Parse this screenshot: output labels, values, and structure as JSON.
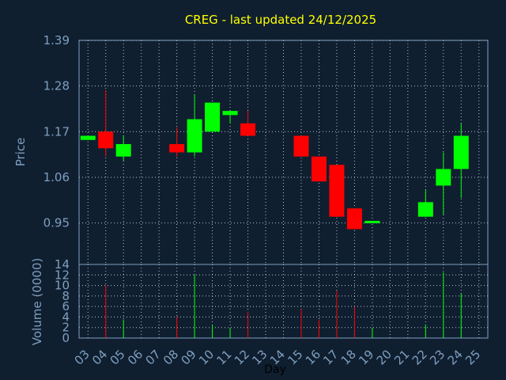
{
  "chart_data": {
    "type": "candlestick",
    "title": "CREG - last updated 24/12/2025",
    "xlabel": "Day",
    "price_panel": {
      "ylabel": "Price",
      "ylim": [
        0.85,
        1.39
      ],
      "yticks": [
        "0.95",
        "1.06",
        "1.17",
        "1.28",
        "1.39"
      ]
    },
    "volume_panel": {
      "ylabel": "Volume (0000)",
      "ylim": [
        0,
        14
      ],
      "yticks": [
        "0",
        "2",
        "4",
        "6",
        "8",
        "10",
        "12",
        "14"
      ]
    },
    "x_tick_labels": [
      "03",
      "04",
      "05",
      "06",
      "07",
      "08",
      "09",
      "10",
      "11",
      "12",
      "13",
      "14",
      "15",
      "16",
      "17",
      "18",
      "19",
      "20",
      "21",
      "22",
      "23",
      "24",
      "25"
    ],
    "grid": true,
    "colors": {
      "up": "#00ff00",
      "down": "#ff0000",
      "title": "#ffff00",
      "axis_text": "#7f9fbf",
      "background": "#0f1f30"
    },
    "candles": [
      {
        "day": "03",
        "open": 1.15,
        "close": 1.16,
        "high": 1.16,
        "low": 1.15,
        "volume": 0
      },
      {
        "day": "04",
        "open": 1.17,
        "close": 1.13,
        "high": 1.27,
        "low": 1.11,
        "volume": 10
      },
      {
        "day": "05",
        "open": 1.11,
        "close": 1.14,
        "high": 1.16,
        "low": 1.1,
        "volume": 3.5
      },
      {
        "day": "08",
        "open": 1.14,
        "close": 1.12,
        "high": 1.18,
        "low": 1.11,
        "volume": 4
      },
      {
        "day": "09",
        "open": 1.12,
        "close": 1.2,
        "high": 1.26,
        "low": 1.11,
        "volume": 12
      },
      {
        "day": "10",
        "open": 1.17,
        "close": 1.24,
        "high": 1.24,
        "low": 1.17,
        "volume": 2.5
      },
      {
        "day": "11",
        "open": 1.21,
        "close": 1.22,
        "high": 1.22,
        "low": 1.19,
        "volume": 1.8
      },
      {
        "day": "12",
        "open": 1.19,
        "close": 1.16,
        "high": 1.22,
        "low": 1.16,
        "volume": 5
      },
      {
        "day": "15",
        "open": 1.16,
        "close": 1.11,
        "high": 1.16,
        "low": 1.11,
        "volume": 5.5
      },
      {
        "day": "16",
        "open": 1.11,
        "close": 1.05,
        "high": 1.11,
        "low": 1.05,
        "volume": 3.5
      },
      {
        "day": "17",
        "open": 1.09,
        "close": 0.965,
        "high": 1.09,
        "low": 0.965,
        "volume": 9
      },
      {
        "day": "18",
        "open": 0.985,
        "close": 0.935,
        "high": 0.985,
        "low": 0.935,
        "volume": 6
      },
      {
        "day": "19",
        "open": 0.95,
        "close": 0.955,
        "high": 0.955,
        "low": 0.95,
        "volume": 2
      },
      {
        "day": "22",
        "open": 0.965,
        "close": 1.0,
        "high": 1.03,
        "low": 0.965,
        "volume": 2.5
      },
      {
        "day": "23",
        "open": 1.04,
        "close": 1.08,
        "high": 1.12,
        "low": 0.97,
        "volume": 12.5
      },
      {
        "day": "24",
        "open": 1.08,
        "close": 1.16,
        "high": 1.19,
        "low": 1.01,
        "volume": 8.5
      }
    ]
  }
}
